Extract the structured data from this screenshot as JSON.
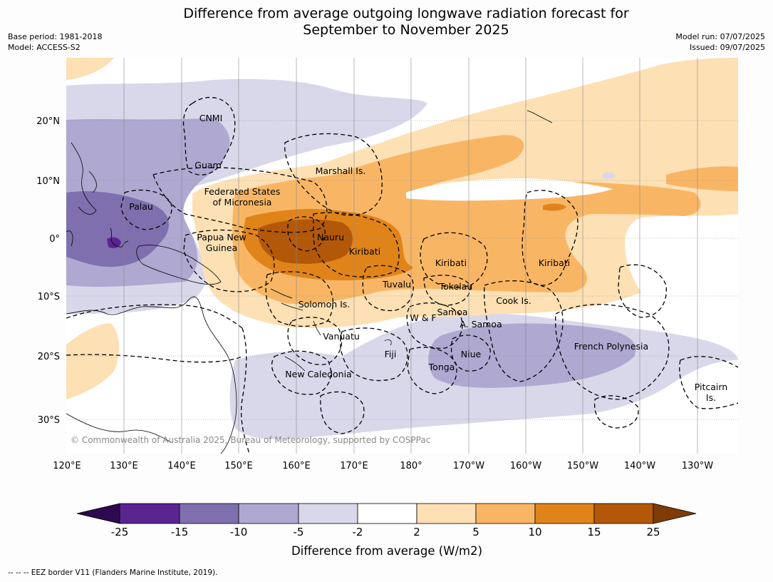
{
  "title": "Difference from average outgoing longwave radiation forecast for September to November 2025",
  "title_line1": "Difference from average outgoing longwave radiation forecast for",
  "title_line2": "September to November 2025",
  "base_period": "Base period: 1981-2018",
  "model": "Model: ACCESS-S2",
  "model_run": "Model run: 07/07/2025",
  "issued": "Issued: 09/07/2025",
  "copyright": "© Commonwealth of Australia 2025, Bureau of Meteorology, supported by COSPPac",
  "footer": "-- -- -- EEZ border V11 (Flanders Marine Institute, 2019).",
  "lat_labels": [
    "20°N",
    "10°N",
    "0°",
    "10°S",
    "20°S",
    "30°S"
  ],
  "lon_labels": [
    "120°E",
    "130°E",
    "140°E",
    "150°E",
    "160°E",
    "170°E",
    "180°",
    "170°W",
    "160°W",
    "150°W",
    "140°W",
    "130°W"
  ],
  "regions": {
    "cnmi": "CNMI",
    "guam": "Guam",
    "marshall": "Marshall Is.",
    "fsm1": "Federated States",
    "fsm2": "of Micronesia",
    "palau": "Palau",
    "png1": "Papua New",
    "png2": "Guinea",
    "nauru": "Nauru",
    "kiribati1": "Kiribati",
    "kiribati2": "Kiribati",
    "kiribati3": "Kiribati",
    "tuvalu": "Tuvalu",
    "tokelau": "Tokelau",
    "cook": "Cook Is.",
    "solomon": "Solomon Is.",
    "wf": "W & F",
    "samoa": "Samoa",
    "asamoa": "A. Samoa",
    "vanuatu": "Vanuatu",
    "fiji": "Fiji",
    "niue": "Niue",
    "tonga": "Tonga",
    "frenchpoly": "French Polynesia",
    "newcal": "New Caledonia",
    "pitcairn1": "Pitcairn",
    "pitcairn2": "Is."
  },
  "colorbar": {
    "title": "Difference from average (W/m2)",
    "ticks": [
      "-25",
      "-15",
      "-10",
      "-5",
      "-2",
      "2",
      "5",
      "10",
      "15",
      "25"
    ],
    "colors": [
      "#2d0a4f",
      "#5a2590",
      "#7f6fae",
      "#afa8d1",
      "#d8d8ea",
      "#ffffff",
      "#fde0b4",
      "#f8b665",
      "#e0841a",
      "#b35808",
      "#7f3b08"
    ]
  }
}
